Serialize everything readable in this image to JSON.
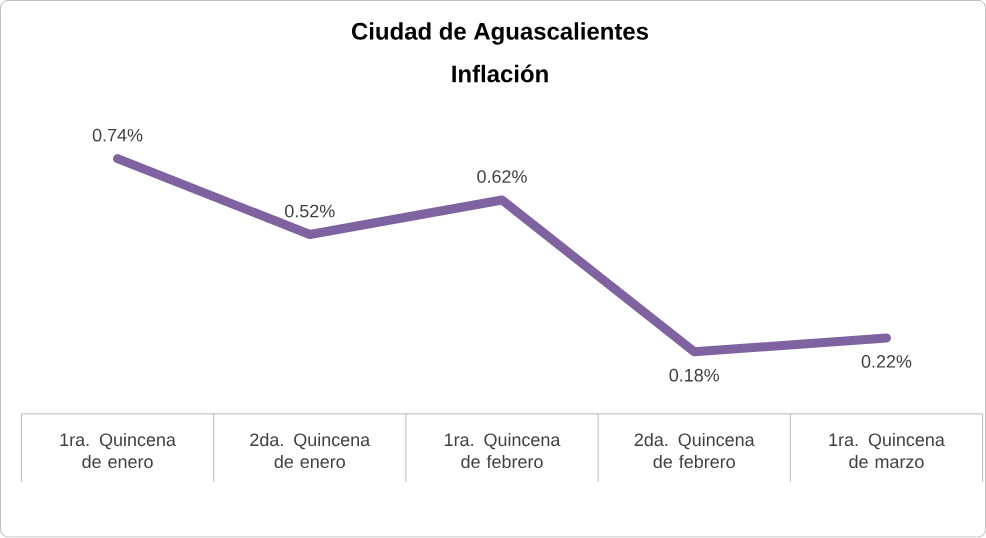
{
  "chart_data": {
    "type": "line",
    "title": "Ciudad de Aguascalientes",
    "subtitle": "Inflación",
    "categories": [
      "1ra. Quincena de enero",
      "2da. Quincena de enero",
      "1ra. Quincena de febrero",
      "2da. Quincena de febrero",
      "1ra. Quincena de marzo"
    ],
    "values": [
      0.74,
      0.52,
      0.62,
      0.18,
      0.22
    ],
    "value_labels": [
      "0.74%",
      "0.52%",
      "0.62%",
      "0.18%",
      "0.22%"
    ],
    "color": "#7f62a0",
    "marker": "none",
    "line_style": "solid"
  }
}
